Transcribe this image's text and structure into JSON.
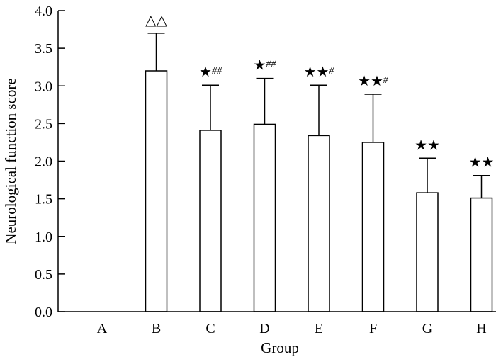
{
  "chart_data": {
    "type": "bar",
    "title": "",
    "xlabel": "Group",
    "ylabel": "Neurological function score",
    "ylim": [
      0,
      4.0
    ],
    "yticks": [
      "0.0",
      "0.5",
      "1.0",
      "1.5",
      "2.0",
      "2.5",
      "3.0",
      "3.5",
      "4.0"
    ],
    "categories": [
      "A",
      "B",
      "C",
      "D",
      "E",
      "F",
      "G",
      "H"
    ],
    "values": [
      0,
      3.2,
      2.41,
      2.49,
      2.34,
      2.25,
      1.58,
      1.51
    ],
    "errors": [
      0,
      0.5,
      0.6,
      0.61,
      0.67,
      0.64,
      0.46,
      0.3
    ],
    "annotations": [
      {
        "main": "",
        "sup": ""
      },
      {
        "main": "△△",
        "sup": ""
      },
      {
        "main": "★",
        "sup": "##"
      },
      {
        "main": "★",
        "sup": "##"
      },
      {
        "main": "★★",
        "sup": "#"
      },
      {
        "main": "★★",
        "sup": "#"
      },
      {
        "main": "★★",
        "sup": ""
      },
      {
        "main": "★★",
        "sup": ""
      }
    ],
    "grid": false,
    "bar_fill": "#ffffff",
    "bar_stroke": "#000000"
  }
}
